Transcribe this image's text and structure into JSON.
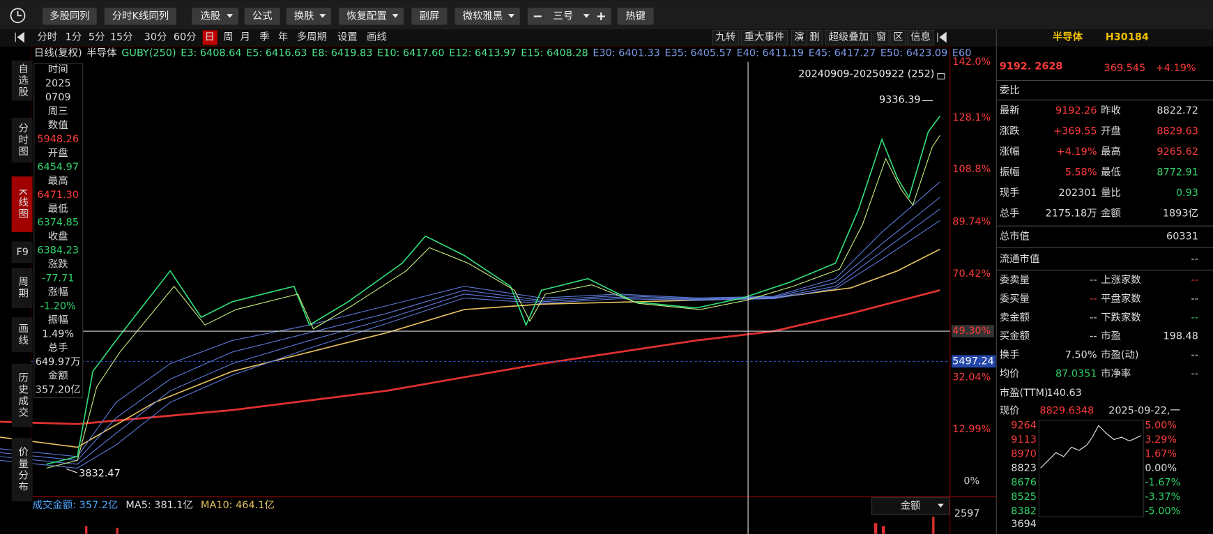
{
  "toolbar": [
    "多股同列",
    "分时K线同列",
    "选股",
    "公式",
    "换肤",
    "恢复配置",
    "副屏",
    "微软雅黑",
    "三号",
    "热键"
  ],
  "periods": [
    "分时",
    "1分",
    "5分",
    "15分",
    "30分",
    "60分",
    "日",
    "周",
    "月",
    "季",
    "年",
    "多周期",
    "设置",
    "画线"
  ],
  "chart_tools": [
    "九转",
    "重大事件",
    "演",
    "删",
    "超级叠加",
    "窗",
    "区",
    "信息"
  ],
  "sidebar": [
    "自选股",
    "分时图",
    "K线图",
    "F9",
    "周期",
    "画线",
    "历史成交",
    "价量分布"
  ],
  "indicator_line": {
    "mode": "日线(复权)",
    "name": "半导体",
    "guby": "GUBY(250)",
    "emas": [
      "E3: 6408.64",
      "E5: 6416.63",
      "E8: 6419.83",
      "E10: 6417.60",
      "E12: 6413.97",
      "E15: 6408.28",
      "E30: 6401.33",
      "E35: 6405.57",
      "E40: 6411.19",
      "E45: 6417.27",
      "E50: 6423.09",
      "E60"
    ]
  },
  "cursor_info": [
    "时间",
    "2025",
    "0709",
    "周三",
    "数值",
    "5948.26",
    "开盘",
    "6454.97",
    "最高",
    "6471.30",
    "最低",
    "6374.85",
    "收盘",
    "6384.23",
    "涨跌",
    "-77.71",
    "涨幅",
    "-1.20%",
    "振幅",
    "1.49%",
    "总手",
    "649.97万",
    "金额",
    "357.20亿"
  ],
  "range": "20240909-20250922 (252)",
  "high_label": "9336.39",
  "low_label": "3832.47",
  "axis_labels": [
    "142.0%",
    "128.1%",
    "108.8%",
    "89.74%",
    "70.42%",
    "32.04%",
    "12.99%",
    "0%"
  ],
  "crosshair_value": "49.30%",
  "crosshair_price": "5497.24",
  "volume": {
    "items": [
      "成交金额: 357.2亿",
      "MA5: 381.1亿",
      "MA10: 464.1亿"
    ],
    "selector": "金额",
    "axis_top": "2597"
  },
  "quote": {
    "name": "半导体",
    "code": "H30184",
    "price": "9192. 2628",
    "change": "369.545",
    "percent": "+4.19%",
    "weibi": "委比",
    "rows": [
      [
        "最新",
        "9192.26",
        "昨收",
        "8822.72"
      ],
      [
        "涨跌",
        "+369.55",
        "开盘",
        "8829.63"
      ],
      [
        "涨幅",
        "+4.19%",
        "最高",
        "9265.62"
      ],
      [
        "振幅",
        "5.58%",
        "最低",
        "8772.91"
      ],
      [
        "现手",
        "202301",
        "量比",
        "0.93"
      ],
      [
        "总手",
        "2175.18万",
        "金额",
        "1893亿"
      ]
    ],
    "wide_rows": [
      [
        "总市值",
        "60331"
      ],
      [
        "流通市值",
        "--"
      ]
    ],
    "rows2": [
      [
        "委卖量",
        "--",
        "上涨家数",
        "--"
      ],
      [
        "委买量",
        "--",
        "平盘家数",
        "--"
      ],
      [
        "卖金额",
        "--",
        "下跌家数",
        "--"
      ],
      [
        "买金额",
        "--",
        "市盈",
        "198.48"
      ],
      [
        "换手",
        "7.50%",
        "市盈(动)",
        "--"
      ],
      [
        "均价",
        "87.0351",
        "市净率",
        "--"
      ]
    ],
    "ttm": [
      "市盈(TTM)",
      "140.63"
    ],
    "now": [
      "现价",
      "8829.6348",
      "2025-09-22,一"
    ],
    "mini_left": [
      "9264",
      "9113",
      "8970",
      "8823",
      "8676",
      "8525",
      "8382",
      "3694"
    ],
    "mini_right": [
      "5.00%",
      "3.29%",
      "1.67%",
      "0.00%",
      "-1.67%",
      "-3.37%",
      "-5.00%"
    ]
  }
}
